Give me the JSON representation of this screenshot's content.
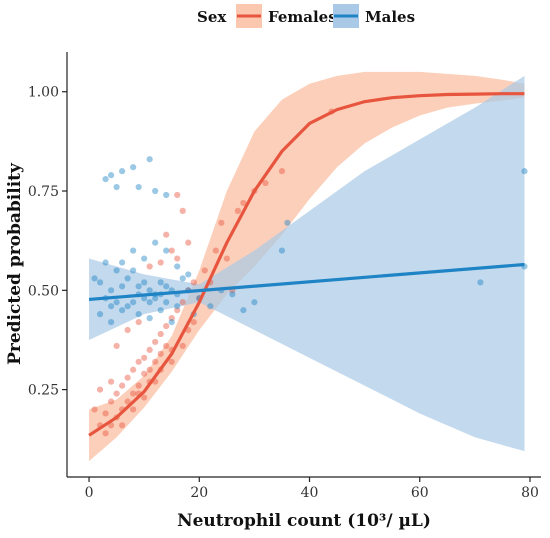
{
  "chart_data": {
    "type": "scatter",
    "xlabel": "Neutrophil count (10³/ µL)",
    "ylabel": "Predicted probability",
    "xlim": [
      -4,
      82
    ],
    "ylim": [
      0.03,
      1.1
    ],
    "xticks": [
      0,
      20,
      40,
      60,
      80
    ],
    "yticks": [
      0.25,
      0.5,
      0.75,
      1.0
    ],
    "xtick_labels": [
      "0",
      "20",
      "40",
      "60",
      "80"
    ],
    "ytick_labels": [
      "0.25",
      "0.50",
      "0.75",
      "1.00"
    ],
    "grid": false,
    "legend": {
      "title": "Sex",
      "position": "top",
      "entries": [
        {
          "label": "Females",
          "color": "#E8553E",
          "band": "#FBC7AE"
        },
        {
          "label": "Males",
          "color": "#1F84C5",
          "band": "#A9C9E6"
        }
      ]
    },
    "series": [
      {
        "name": "Females",
        "fit": {
          "x": [
            0,
            5,
            10,
            15,
            20,
            25,
            30,
            35,
            40,
            45,
            50,
            55,
            60,
            65,
            70,
            75,
            79
          ],
          "y": [
            0.135,
            0.18,
            0.245,
            0.34,
            0.47,
            0.62,
            0.75,
            0.85,
            0.92,
            0.955,
            0.975,
            0.985,
            0.99,
            0.993,
            0.994,
            0.995,
            0.995
          ]
        },
        "ci_upper": {
          "x": [
            0,
            5,
            10,
            15,
            20,
            25,
            30,
            35,
            40,
            45,
            50,
            55,
            60,
            65,
            70,
            75,
            79
          ],
          "y": [
            0.2,
            0.225,
            0.285,
            0.385,
            0.55,
            0.75,
            0.9,
            0.98,
            1.02,
            1.04,
            1.05,
            1.05,
            1.05,
            1.045,
            1.04,
            1.03,
            1.02
          ]
        },
        "ci_lower": {
          "x": [
            0,
            5,
            10,
            15,
            20,
            25,
            30,
            35,
            40,
            45,
            50,
            55,
            60,
            65,
            70,
            75,
            79
          ],
          "y": [
            0.07,
            0.13,
            0.205,
            0.295,
            0.4,
            0.49,
            0.56,
            0.64,
            0.73,
            0.81,
            0.87,
            0.91,
            0.94,
            0.96,
            0.97,
            0.978,
            0.985
          ]
        },
        "points": [
          [
            2,
            0.16
          ],
          [
            3,
            0.19
          ],
          [
            4,
            0.22
          ],
          [
            5,
            0.24
          ],
          [
            6,
            0.26
          ],
          [
            7,
            0.28
          ],
          [
            8,
            0.3
          ],
          [
            9,
            0.32
          ],
          [
            10,
            0.33
          ],
          [
            11,
            0.35
          ],
          [
            12,
            0.37
          ],
          [
            13,
            0.39
          ],
          [
            14,
            0.41
          ],
          [
            15,
            0.43
          ],
          [
            16,
            0.45
          ],
          [
            17,
            0.47
          ],
          [
            18,
            0.5
          ],
          [
            19,
            0.52
          ],
          [
            21,
            0.55
          ],
          [
            23,
            0.6
          ],
          [
            24,
            0.67
          ],
          [
            27,
            0.7
          ],
          [
            28,
            0.72
          ],
          [
            30,
            0.75
          ],
          [
            32,
            0.77
          ],
          [
            35,
            0.8
          ],
          [
            44,
            0.95
          ],
          [
            5,
            0.18
          ],
          [
            6,
            0.2
          ],
          [
            7,
            0.22
          ],
          [
            8,
            0.24
          ],
          [
            9,
            0.26
          ],
          [
            10,
            0.29
          ],
          [
            11,
            0.3
          ],
          [
            12,
            0.32
          ],
          [
            13,
            0.34
          ],
          [
            14,
            0.36
          ],
          [
            3,
            0.14
          ],
          [
            4,
            0.16
          ],
          [
            1,
            0.2
          ],
          [
            6,
            0.16
          ],
          [
            8,
            0.2
          ],
          [
            10,
            0.23
          ],
          [
            12,
            0.27
          ],
          [
            15,
            0.32
          ],
          [
            17,
            0.36
          ],
          [
            19,
            0.42
          ],
          [
            16,
            0.58
          ],
          [
            18,
            0.62
          ],
          [
            15,
            0.6
          ],
          [
            14,
            0.64
          ],
          [
            17,
            0.7
          ],
          [
            16,
            0.74
          ],
          [
            13,
            0.57
          ],
          [
            11,
            0.56
          ],
          [
            9,
            0.42
          ],
          [
            7,
            0.4
          ],
          [
            5,
            0.36
          ],
          [
            4,
            0.27
          ],
          [
            2,
            0.25
          ],
          [
            9,
            0.24
          ],
          [
            11,
            0.27
          ],
          [
            13,
            0.3
          ],
          [
            15,
            0.35
          ],
          [
            18,
            0.4
          ],
          [
            20,
            0.48
          ],
          [
            22,
            0.52
          ],
          [
            25,
            0.58
          ],
          [
            26,
            0.5
          ]
        ]
      },
      {
        "name": "Males",
        "fit": {
          "x": [
            0,
            79
          ],
          "y": [
            0.477,
            0.565
          ]
        },
        "ci_upper": {
          "x": [
            0,
            10,
            20,
            30,
            40,
            50,
            60,
            70,
            79
          ],
          "y": [
            0.58,
            0.54,
            0.515,
            0.6,
            0.7,
            0.8,
            0.88,
            0.96,
            1.04
          ]
        },
        "ci_lower": {
          "x": [
            0,
            10,
            20,
            30,
            40,
            50,
            60,
            70,
            79
          ],
          "y": [
            0.375,
            0.44,
            0.47,
            0.4,
            0.33,
            0.26,
            0.19,
            0.13,
            0.095
          ]
        },
        "points": [
          [
            3,
            0.78
          ],
          [
            4,
            0.79
          ],
          [
            5,
            0.76
          ],
          [
            6,
            0.8
          ],
          [
            8,
            0.81
          ],
          [
            9,
            0.76
          ],
          [
            11,
            0.83
          ],
          [
            12,
            0.75
          ],
          [
            14,
            0.74
          ],
          [
            1,
            0.53
          ],
          [
            2,
            0.52
          ],
          [
            3,
            0.48
          ],
          [
            4,
            0.5
          ],
          [
            5,
            0.47
          ],
          [
            6,
            0.45
          ],
          [
            7,
            0.53
          ],
          [
            8,
            0.55
          ],
          [
            9,
            0.51
          ],
          [
            10,
            0.48
          ],
          [
            11,
            0.5
          ],
          [
            12,
            0.49
          ],
          [
            13,
            0.52
          ],
          [
            14,
            0.47
          ],
          [
            15,
            0.5
          ],
          [
            16,
            0.46
          ],
          [
            17,
            0.53
          ],
          [
            18,
            0.5
          ],
          [
            19,
            0.44
          ],
          [
            2,
            0.44
          ],
          [
            4,
            0.42
          ],
          [
            6,
            0.57
          ],
          [
            8,
            0.6
          ],
          [
            10,
            0.58
          ],
          [
            12,
            0.62
          ],
          [
            14,
            0.6
          ],
          [
            16,
            0.56
          ],
          [
            18,
            0.54
          ],
          [
            7,
            0.46
          ],
          [
            9,
            0.44
          ],
          [
            11,
            0.43
          ],
          [
            13,
            0.45
          ],
          [
            15,
            0.42
          ],
          [
            5,
            0.55
          ],
          [
            3,
            0.57
          ],
          [
            20,
            0.48
          ],
          [
            22,
            0.46
          ],
          [
            24,
            0.5
          ],
          [
            26,
            0.49
          ],
          [
            28,
            0.45
          ],
          [
            30,
            0.47
          ],
          [
            35,
            0.6
          ],
          [
            36,
            0.67
          ],
          [
            71,
            0.52
          ],
          [
            79,
            0.56
          ],
          [
            79,
            0.8
          ],
          [
            12,
            0.48
          ],
          [
            10,
            0.52
          ],
          [
            11,
            0.47
          ],
          [
            13,
            0.49
          ],
          [
            9,
            0.49
          ],
          [
            8,
            0.47
          ],
          [
            14,
            0.51
          ],
          [
            16,
            0.49
          ],
          [
            6,
            0.51
          ],
          [
            4,
            0.46
          ]
        ]
      }
    ]
  }
}
